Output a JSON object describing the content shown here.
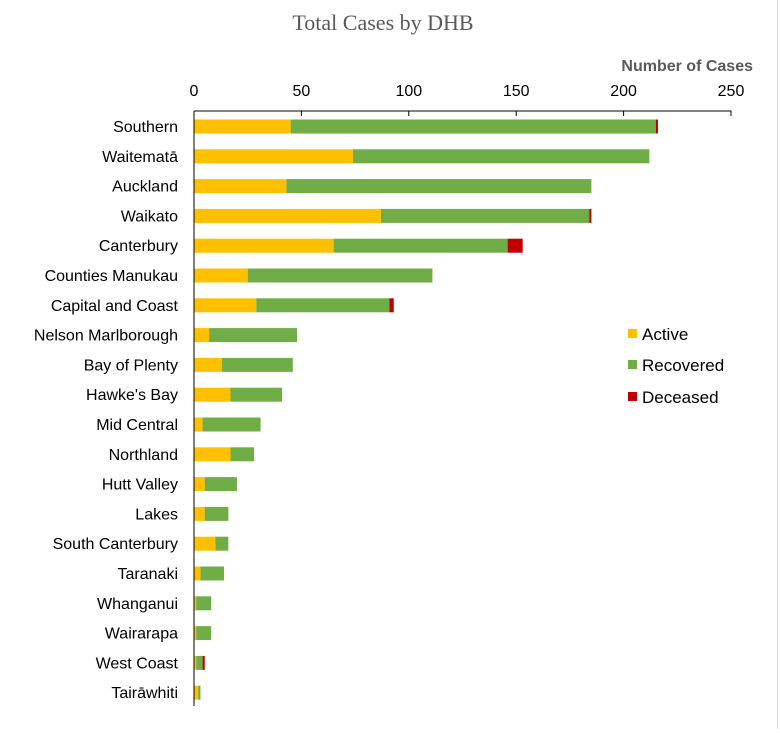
{
  "chart_data": {
    "type": "bar",
    "orientation": "horizontal",
    "stacked": true,
    "title": "Total Cases by DHB",
    "xlabel": "Number of Cases",
    "ylabel": "",
    "xlim": [
      0,
      250
    ],
    "xticks": [
      0,
      50,
      100,
      150,
      200,
      250
    ],
    "grid": false,
    "legend_position": "right",
    "categories": [
      "Southern",
      "Waitematā",
      "Auckland",
      "Waikato",
      "Canterbury",
      "Counties Manukau",
      "Capital and Coast",
      "Nelson Marlborough",
      "Bay of Plenty",
      "Hawke's Bay",
      "Mid Central",
      "Northland",
      "Hutt Valley",
      "Lakes",
      "South Canterbury",
      "Taranaki",
      "Whanganui",
      "Wairarapa",
      "West Coast",
      "Tairāwhiti"
    ],
    "series": [
      {
        "name": "Active",
        "color": "#ffc000",
        "values": [
          45,
          74,
          43,
          87,
          65,
          25,
          29,
          7,
          13,
          17,
          4,
          17,
          5,
          5,
          10,
          3,
          1,
          1,
          1,
          2
        ]
      },
      {
        "name": "Recovered",
        "color": "#70ad47",
        "values": [
          170,
          138,
          142,
          97,
          81,
          86,
          62,
          41,
          33,
          24,
          27,
          11,
          15,
          11,
          6,
          11,
          7,
          7,
          3,
          1
        ]
      },
      {
        "name": "Deceased",
        "color": "#c00000",
        "values": [
          1,
          0,
          0,
          1,
          7,
          0,
          2,
          0,
          0,
          0,
          0,
          0,
          0,
          0,
          0,
          0,
          0,
          0,
          1,
          0
        ]
      }
    ]
  }
}
